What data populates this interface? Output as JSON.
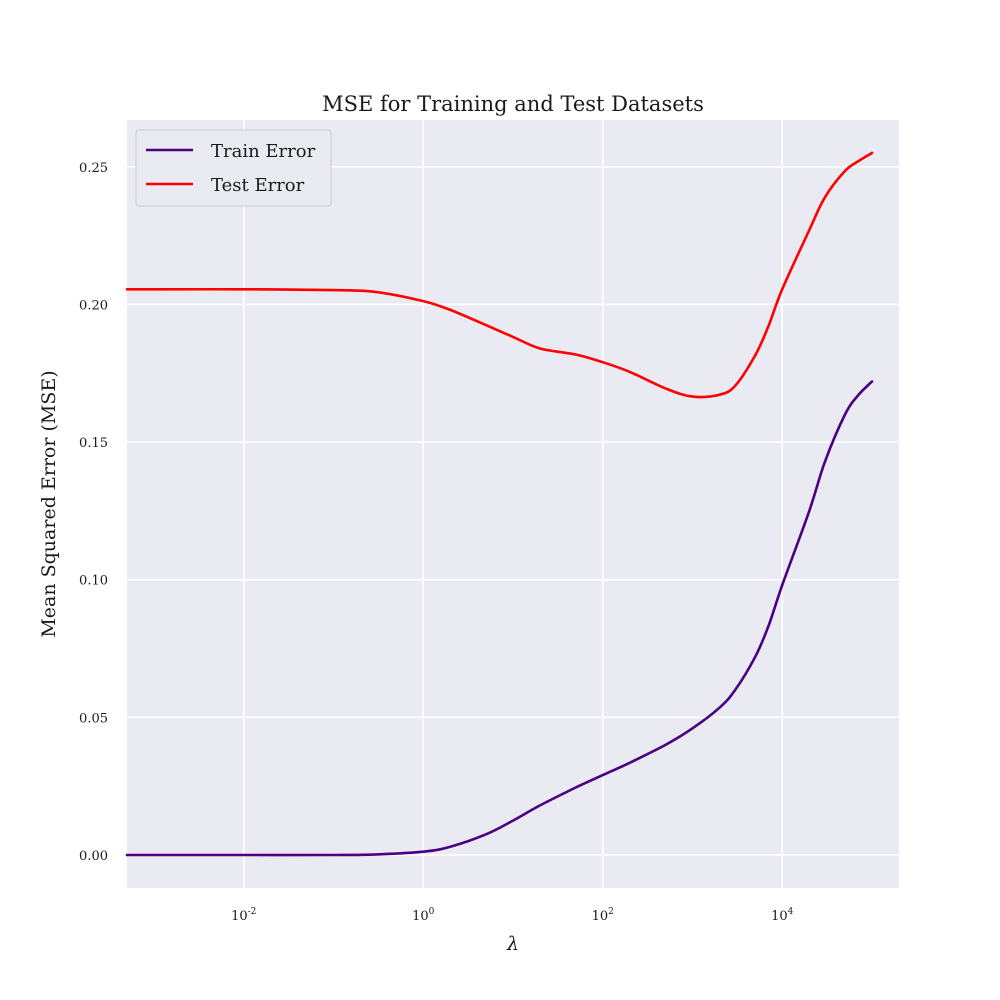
{
  "chart_data": {
    "type": "line",
    "title": "MSE for Training and Test Datasets",
    "xlabel": "λ",
    "ylabel": "Mean Squared Error (MSE)",
    "x_scale": "log",
    "xlim": [
      0.0005,
      200000
    ],
    "ylim": [
      -0.012,
      0.267
    ],
    "grid": true,
    "legend_position": "top-left",
    "x_ticks": [
      {
        "value": 0.01,
        "base": "10",
        "exp": "-2"
      },
      {
        "value": 1,
        "base": "10",
        "exp": "0"
      },
      {
        "value": 100,
        "base": "10",
        "exp": "2"
      },
      {
        "value": 10000,
        "base": "10",
        "exp": "4"
      }
    ],
    "y_ticks": [
      {
        "value": 0.0,
        "label": "0.00"
      },
      {
        "value": 0.05,
        "label": "0.05"
      },
      {
        "value": 0.1,
        "label": "0.10"
      },
      {
        "value": 0.15,
        "label": "0.15"
      },
      {
        "value": 0.2,
        "label": "0.20"
      },
      {
        "value": 0.25,
        "label": "0.25"
      }
    ],
    "series": [
      {
        "name": "Train Error",
        "color": "#4b0082",
        "x": [
          0.0005,
          0.001,
          0.01,
          0.1,
          0.3,
          1,
          2,
          5,
          10,
          20,
          50,
          100,
          200,
          500,
          1000,
          2000,
          3000,
          5000,
          7000,
          10000,
          20000,
          30000,
          50000,
          70000,
          100000
        ],
        "y": [
          0.0,
          0.0,
          0.0,
          0.0,
          0.0002,
          0.0012,
          0.003,
          0.0075,
          0.0125,
          0.018,
          0.0245,
          0.029,
          0.0335,
          0.04,
          0.046,
          0.0535,
          0.06,
          0.072,
          0.083,
          0.098,
          0.125,
          0.143,
          0.16,
          0.167,
          0.172
        ]
      },
      {
        "name": "Test Error",
        "color": "#ff0000",
        "x": [
          0.0005,
          0.001,
          0.01,
          0.1,
          0.3,
          1,
          2,
          5,
          10,
          20,
          50,
          100,
          200,
          500,
          1000,
          2000,
          3000,
          5000,
          7000,
          10000,
          20000,
          30000,
          50000,
          70000,
          100000
        ],
        "y": [
          0.2055,
          0.2055,
          0.2055,
          0.2052,
          0.2045,
          0.2012,
          0.198,
          0.1925,
          0.1882,
          0.184,
          0.1818,
          0.179,
          0.1755,
          0.1695,
          0.1665,
          0.1672,
          0.1705,
          0.1815,
          0.192,
          0.2055,
          0.227,
          0.239,
          0.2485,
          0.252,
          0.255
        ]
      }
    ]
  }
}
